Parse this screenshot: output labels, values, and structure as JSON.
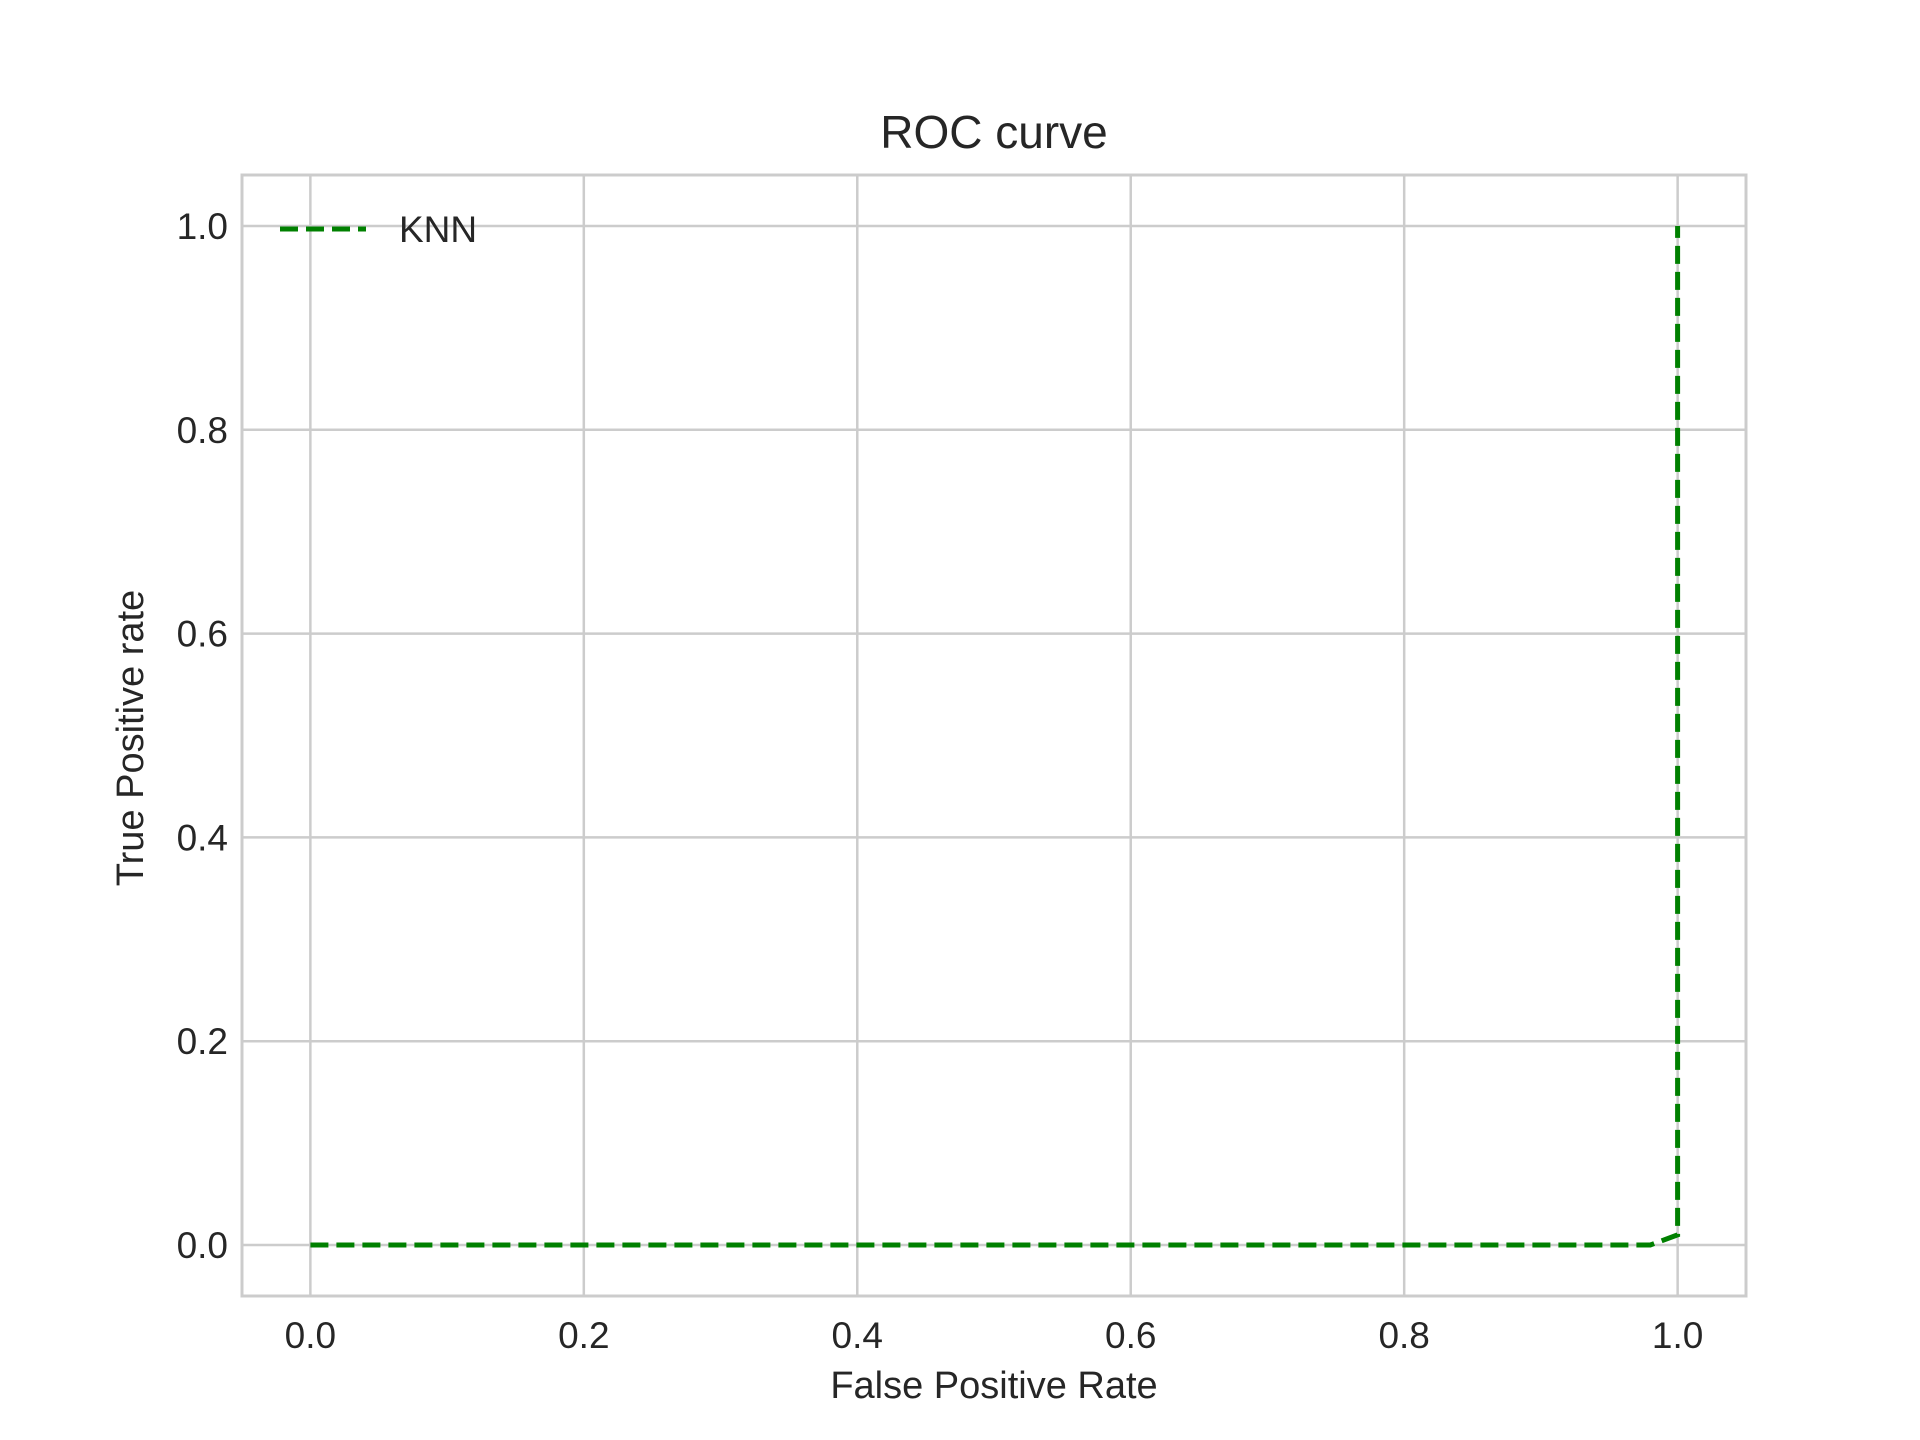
{
  "chart_data": {
    "type": "line",
    "title": "ROC curve",
    "xlabel": "False Positive Rate",
    "ylabel": "True Positive rate",
    "xlim": [
      -0.05,
      1.05
    ],
    "ylim": [
      -0.05,
      1.05
    ],
    "xticks": [
      "0.0",
      "0.2",
      "0.4",
      "0.6",
      "0.8",
      "1.0"
    ],
    "yticks": [
      "0.0",
      "0.2",
      "0.4",
      "0.6",
      "0.8",
      "1.0"
    ],
    "grid": true,
    "legend_position": "top-left",
    "series": [
      {
        "name": "KNN",
        "color": "#008000",
        "line_style": "dashed",
        "x": [
          0.0,
          0.98,
          1.0,
          1.0,
          1.0
        ],
        "y": [
          0.0,
          0.0,
          0.01,
          0.8,
          1.0
        ]
      }
    ]
  }
}
